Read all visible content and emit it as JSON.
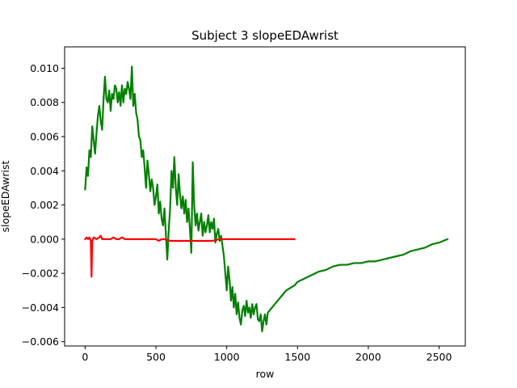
{
  "chart_data": {
    "type": "line",
    "title": "Subject 3 slopeEDAwrist",
    "xlabel": "row",
    "ylabel": "slopeEDAwrist",
    "xlim": [
      -145,
      2685
    ],
    "ylim": [
      -0.00625,
      0.01125
    ],
    "xticks": [
      0,
      500,
      1000,
      1500,
      2000,
      2500
    ],
    "xtick_labels": [
      "0",
      "500",
      "1000",
      "1500",
      "2000",
      "2500"
    ],
    "yticks": [
      -0.006,
      -0.004,
      -0.002,
      0.0,
      0.002,
      0.004,
      0.006,
      0.008,
      0.01
    ],
    "ytick_labels": [
      "−0.006",
      "−0.004",
      "−0.002",
      "0.000",
      "0.002",
      "0.004",
      "0.006",
      "0.008",
      "0.010"
    ],
    "grid": false,
    "series": [
      {
        "name": "green series",
        "color": "#008000",
        "points": [
          [
            0,
            0.0029
          ],
          [
            10,
            0.0042
          ],
          [
            20,
            0.0037
          ],
          [
            30,
            0.0052
          ],
          [
            40,
            0.0048
          ],
          [
            50,
            0.0066
          ],
          [
            60,
            0.0058
          ],
          [
            70,
            0.005
          ],
          [
            80,
            0.0062
          ],
          [
            90,
            0.0072
          ],
          [
            100,
            0.0078
          ],
          [
            110,
            0.0069
          ],
          [
            120,
            0.0064
          ],
          [
            130,
            0.0082
          ],
          [
            140,
            0.0095
          ],
          [
            150,
            0.0082
          ],
          [
            160,
            0.008
          ],
          [
            170,
            0.0087
          ],
          [
            180,
            0.0075
          ],
          [
            190,
            0.0085
          ],
          [
            200,
            0.0082
          ],
          [
            210,
            0.009
          ],
          [
            220,
            0.0088
          ],
          [
            230,
            0.008
          ],
          [
            240,
            0.0086
          ],
          [
            250,
            0.0078
          ],
          [
            260,
            0.009
          ],
          [
            270,
            0.008
          ],
          [
            280,
            0.0088
          ],
          [
            290,
            0.0085
          ],
          [
            300,
            0.0092
          ],
          [
            310,
            0.0088
          ],
          [
            320,
            0.0082
          ],
          [
            330,
            0.0101
          ],
          [
            340,
            0.0078
          ],
          [
            350,
            0.0085
          ],
          [
            360,
            0.0074
          ],
          [
            370,
            0.007
          ],
          [
            380,
            0.006
          ],
          [
            390,
            0.0058
          ],
          [
            400,
            0.0048
          ],
          [
            410,
            0.0052
          ],
          [
            420,
            0.0042
          ],
          [
            430,
            0.003
          ],
          [
            440,
            0.0046
          ],
          [
            450,
            0.0038
          ],
          [
            460,
            0.0028
          ],
          [
            470,
            0.0035
          ],
          [
            480,
            0.003
          ],
          [
            490,
            0.002
          ],
          [
            500,
            0.0025
          ],
          [
            510,
            0.0032
          ],
          [
            520,
            0.0015
          ],
          [
            530,
            0.0022
          ],
          [
            540,
            0.0012
          ],
          [
            550,
            0.0008
          ],
          [
            560,
            0.0018
          ],
          [
            570,
            0.0003
          ],
          [
            580,
            -0.0012
          ],
          [
            590,
            0.0005
          ],
          [
            600,
            0.0018
          ],
          [
            610,
            0.004
          ],
          [
            620,
            0.003
          ],
          [
            630,
            0.0048
          ],
          [
            640,
            0.003
          ],
          [
            650,
            0.002
          ],
          [
            660,
            0.0038
          ],
          [
            670,
            0.0026
          ],
          [
            680,
            0.0018
          ],
          [
            690,
            0.0025
          ],
          [
            700,
            0.0015
          ],
          [
            710,
            0.0023
          ],
          [
            720,
            0.001
          ],
          [
            730,
            0.0018
          ],
          [
            740,
            0.0006
          ],
          [
            750,
            -0.0008
          ],
          [
            760,
            0.0045
          ],
          [
            770,
            0.002
          ],
          [
            780,
            0.0008
          ],
          [
            790,
            0.0015
          ],
          [
            800,
            0.0005
          ],
          [
            810,
            0.001
          ],
          [
            820,
            0.0015
          ],
          [
            830,
            0.0002
          ],
          [
            840,
            0.001
          ],
          [
            850,
            0.0004
          ],
          [
            860,
            0.0008
          ],
          [
            870,
            0.0014
          ],
          [
            880,
            0.0004
          ],
          [
            890,
            0.001
          ],
          [
            900,
            0.0006
          ],
          [
            910,
            0.0012
          ],
          [
            920,
            -0.0002
          ],
          [
            930,
            0.0003
          ],
          [
            940,
            0.0006
          ],
          [
            950,
            -0.0001
          ],
          [
            960,
            0.0002
          ],
          [
            970,
            -0.0004
          ],
          [
            980,
            -0.001
          ],
          [
            990,
            -0.002
          ],
          [
            1000,
            -0.003
          ],
          [
            1010,
            -0.0016
          ],
          [
            1020,
            -0.0024
          ],
          [
            1030,
            -0.0036
          ],
          [
            1040,
            -0.0028
          ],
          [
            1050,
            -0.004
          ],
          [
            1060,
            -0.0032
          ],
          [
            1070,
            -0.0044
          ],
          [
            1080,
            -0.0037
          ],
          [
            1090,
            -0.0046
          ],
          [
            1100,
            -0.005
          ],
          [
            1110,
            -0.0042
          ],
          [
            1120,
            -0.0039
          ],
          [
            1130,
            -0.0045
          ],
          [
            1140,
            -0.0036
          ],
          [
            1150,
            -0.0043
          ],
          [
            1160,
            -0.004
          ],
          [
            1170,
            -0.0046
          ],
          [
            1180,
            -0.0038
          ],
          [
            1190,
            -0.0044
          ],
          [
            1200,
            -0.004
          ],
          [
            1210,
            -0.0038
          ],
          [
            1220,
            -0.0047
          ],
          [
            1230,
            -0.0048
          ],
          [
            1240,
            -0.0044
          ],
          [
            1250,
            -0.0054
          ],
          [
            1260,
            -0.0048
          ],
          [
            1270,
            -0.0044
          ],
          [
            1280,
            -0.005
          ],
          [
            1290,
            -0.0043
          ],
          [
            1300,
            -0.0042
          ],
          [
            1320,
            -0.004
          ],
          [
            1340,
            -0.0038
          ],
          [
            1360,
            -0.0036
          ],
          [
            1380,
            -0.0034
          ],
          [
            1400,
            -0.0032
          ],
          [
            1420,
            -0.003
          ],
          [
            1440,
            -0.0029
          ],
          [
            1460,
            -0.0028
          ],
          [
            1480,
            -0.0027
          ],
          [
            1500,
            -0.0025
          ],
          [
            1550,
            -0.0023
          ],
          [
            1600,
            -0.0021
          ],
          [
            1650,
            -0.0019
          ],
          [
            1700,
            -0.0018
          ],
          [
            1750,
            -0.0016
          ],
          [
            1800,
            -0.0015
          ],
          [
            1850,
            -0.0015
          ],
          [
            1900,
            -0.0014
          ],
          [
            1950,
            -0.0014
          ],
          [
            2000,
            -0.0013
          ],
          [
            2050,
            -0.0013
          ],
          [
            2100,
            -0.0012
          ],
          [
            2150,
            -0.0011
          ],
          [
            2200,
            -0.001
          ],
          [
            2250,
            -0.0009
          ],
          [
            2300,
            -0.0007
          ],
          [
            2350,
            -0.0006
          ],
          [
            2400,
            -0.0005
          ],
          [
            2450,
            -0.0003
          ],
          [
            2500,
            -0.0002
          ],
          [
            2560,
            0.0
          ]
        ]
      },
      {
        "name": "red series",
        "color": "#ff0000",
        "points": [
          [
            0,
            0.0
          ],
          [
            10,
            0.0001
          ],
          [
            20,
            0.0
          ],
          [
            30,
            0.0001
          ],
          [
            40,
            -0.0001
          ],
          [
            45,
            -0.0022
          ],
          [
            50,
            -0.0001
          ],
          [
            60,
            0.0001
          ],
          [
            80,
            0.0
          ],
          [
            100,
            0.0001
          ],
          [
            110,
            0.0002
          ],
          [
            120,
            0.0
          ],
          [
            140,
            0.0
          ],
          [
            160,
            0.0
          ],
          [
            180,
            0.0
          ],
          [
            200,
            0.0001
          ],
          [
            220,
            0.0
          ],
          [
            240,
            0.0
          ],
          [
            260,
            0.0001
          ],
          [
            280,
            0.0
          ],
          [
            300,
            0.0
          ],
          [
            350,
            0.0
          ],
          [
            400,
            0.0
          ],
          [
            450,
            0.0
          ],
          [
            500,
            0.0
          ],
          [
            520,
            -0.0001
          ],
          [
            540,
            0.0
          ],
          [
            560,
            0.0
          ],
          [
            600,
            -0.0001
          ],
          [
            650,
            -0.0001
          ],
          [
            700,
            -0.0001
          ],
          [
            750,
            -0.0001
          ],
          [
            800,
            -0.0001
          ],
          [
            850,
            -0.0001
          ],
          [
            900,
            -0.0001
          ],
          [
            950,
            0.0
          ],
          [
            1000,
            0.0
          ],
          [
            1100,
            0.0
          ],
          [
            1200,
            0.0
          ],
          [
            1300,
            0.0
          ],
          [
            1400,
            0.0
          ],
          [
            1480,
            0.0
          ]
        ]
      }
    ]
  }
}
